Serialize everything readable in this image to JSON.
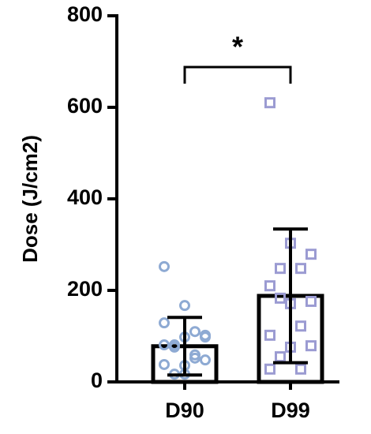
{
  "chart_data": {
    "type": "bar",
    "ylabel": "Dose (J/cm2)",
    "categories": [
      "D90",
      "D99"
    ],
    "values": [
      78,
      188
    ],
    "errors": [
      63,
      146
    ],
    "points": [
      [
        252,
        167,
        102,
        81,
        59,
        38,
        17,
        98,
        76,
        52,
        129,
        98,
        48,
        17,
        110,
        81,
        36
      ],
      [
        610,
        303,
        279,
        248,
        248,
        210,
        171,
        176,
        183,
        122,
        102,
        76,
        79,
        55,
        28,
        28
      ]
    ],
    "point_colors": [
      "#8eaad3",
      "#9b9bd2"
    ],
    "ylim": [
      0,
      800
    ],
    "yticks": [
      0,
      200,
      400,
      600,
      800
    ],
    "annotation": "*"
  }
}
